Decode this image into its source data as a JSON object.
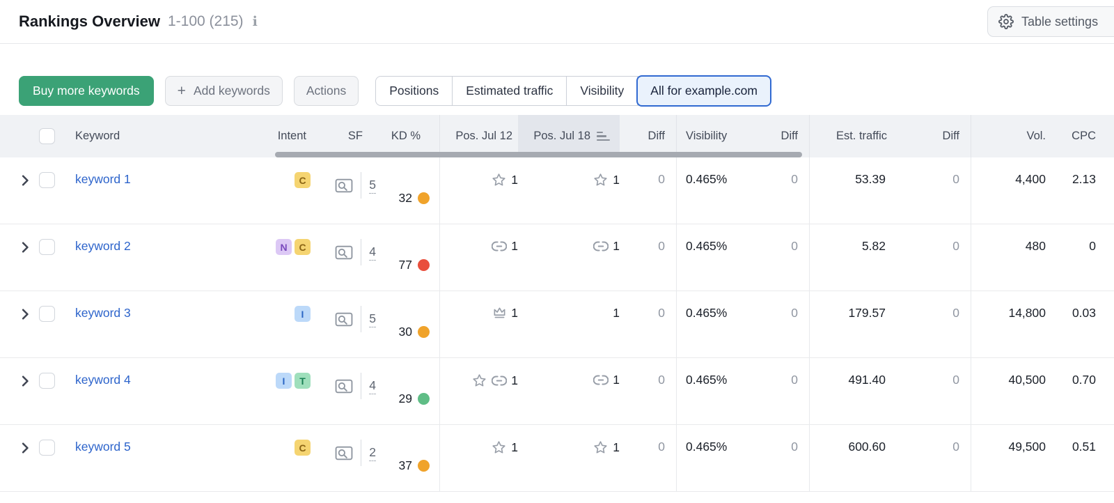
{
  "page": {
    "title": "Rankings Overview",
    "range": "1-100 (215)",
    "table_settings": "Table settings"
  },
  "toolbar": {
    "buy": "Buy more keywords",
    "add": "Add keywords",
    "plus": "+",
    "actions": "Actions",
    "views": [
      "Positions",
      "Estimated traffic",
      "Visibility",
      "All for example.com"
    ],
    "selected_view": "All for example.com"
  },
  "table": {
    "headers": {
      "keyword": "Keyword",
      "intent": "Intent",
      "sf": "SF",
      "kd": "KD %",
      "pos_prev": "Pos. Jul 12",
      "pos_curr": "Pos. Jul 18",
      "diff": "Diff",
      "visibility": "Visibility",
      "est_traffic": "Est. traffic",
      "vol": "Vol.",
      "cpc": "CPC"
    },
    "sorted_column": "Pos. Jul 18",
    "intent_badges": {
      "C": {
        "bg": "#f5d471",
        "fg": "#8a6414"
      },
      "N": {
        "bg": "#dcc8f5",
        "fg": "#7a49bd"
      },
      "I": {
        "bg": "#bcd9f9",
        "fg": "#2a66c4"
      },
      "T": {
        "bg": "#9fdfbc",
        "fg": "#198055"
      }
    },
    "kd_colors": {
      "orange": "#f0a32b",
      "red": "#e94f3d",
      "green": "#5fbd86"
    },
    "rows": [
      {
        "keyword": "keyword 1",
        "intents": [
          "C"
        ],
        "sf": "5",
        "kd": "32",
        "kd_level": "orange",
        "pos_prev": {
          "icons": [
            "star"
          ],
          "value": "1"
        },
        "pos_curr": {
          "icons": [
            "star"
          ],
          "value": "1"
        },
        "pos_diff": "0",
        "visibility": "0.465%",
        "vis_diff": "0",
        "est_traffic": "53.39",
        "traffic_diff": "0",
        "volume": "4,400",
        "cpc": "2.13"
      },
      {
        "keyword": "keyword 2",
        "intents": [
          "N",
          "C"
        ],
        "sf": "4",
        "kd": "77",
        "kd_level": "red",
        "pos_prev": {
          "icons": [
            "link"
          ],
          "value": "1"
        },
        "pos_curr": {
          "icons": [
            "link"
          ],
          "value": "1"
        },
        "pos_diff": "0",
        "visibility": "0.465%",
        "vis_diff": "0",
        "est_traffic": "5.82",
        "traffic_diff": "0",
        "volume": "480",
        "cpc": "0"
      },
      {
        "keyword": "keyword 3",
        "intents": [
          "I"
        ],
        "sf": "5",
        "kd": "30",
        "kd_level": "orange",
        "pos_prev": {
          "icons": [
            "crown"
          ],
          "value": "1"
        },
        "pos_curr": {
          "icons": [],
          "value": "1"
        },
        "pos_diff": "0",
        "visibility": "0.465%",
        "vis_diff": "0",
        "est_traffic": "179.57",
        "traffic_diff": "0",
        "volume": "14,800",
        "cpc": "0.03"
      },
      {
        "keyword": "keyword 4",
        "intents": [
          "I",
          "T"
        ],
        "sf": "4",
        "kd": "29",
        "kd_level": "green",
        "pos_prev": {
          "icons": [
            "star",
            "link"
          ],
          "value": "1"
        },
        "pos_curr": {
          "icons": [
            "link"
          ],
          "value": "1"
        },
        "pos_diff": "0",
        "visibility": "0.465%",
        "vis_diff": "0",
        "est_traffic": "491.40",
        "traffic_diff": "0",
        "volume": "40,500",
        "cpc": "0.70"
      },
      {
        "keyword": "keyword 5",
        "intents": [
          "C"
        ],
        "sf": "2",
        "kd": "37",
        "kd_level": "orange",
        "pos_prev": {
          "icons": [
            "star"
          ],
          "value": "1"
        },
        "pos_curr": {
          "icons": [
            "star"
          ],
          "value": "1"
        },
        "pos_diff": "0",
        "visibility": "0.465%",
        "vis_diff": "0",
        "est_traffic": "600.60",
        "traffic_diff": "0",
        "volume": "49,500",
        "cpc": "0.51"
      }
    ]
  }
}
